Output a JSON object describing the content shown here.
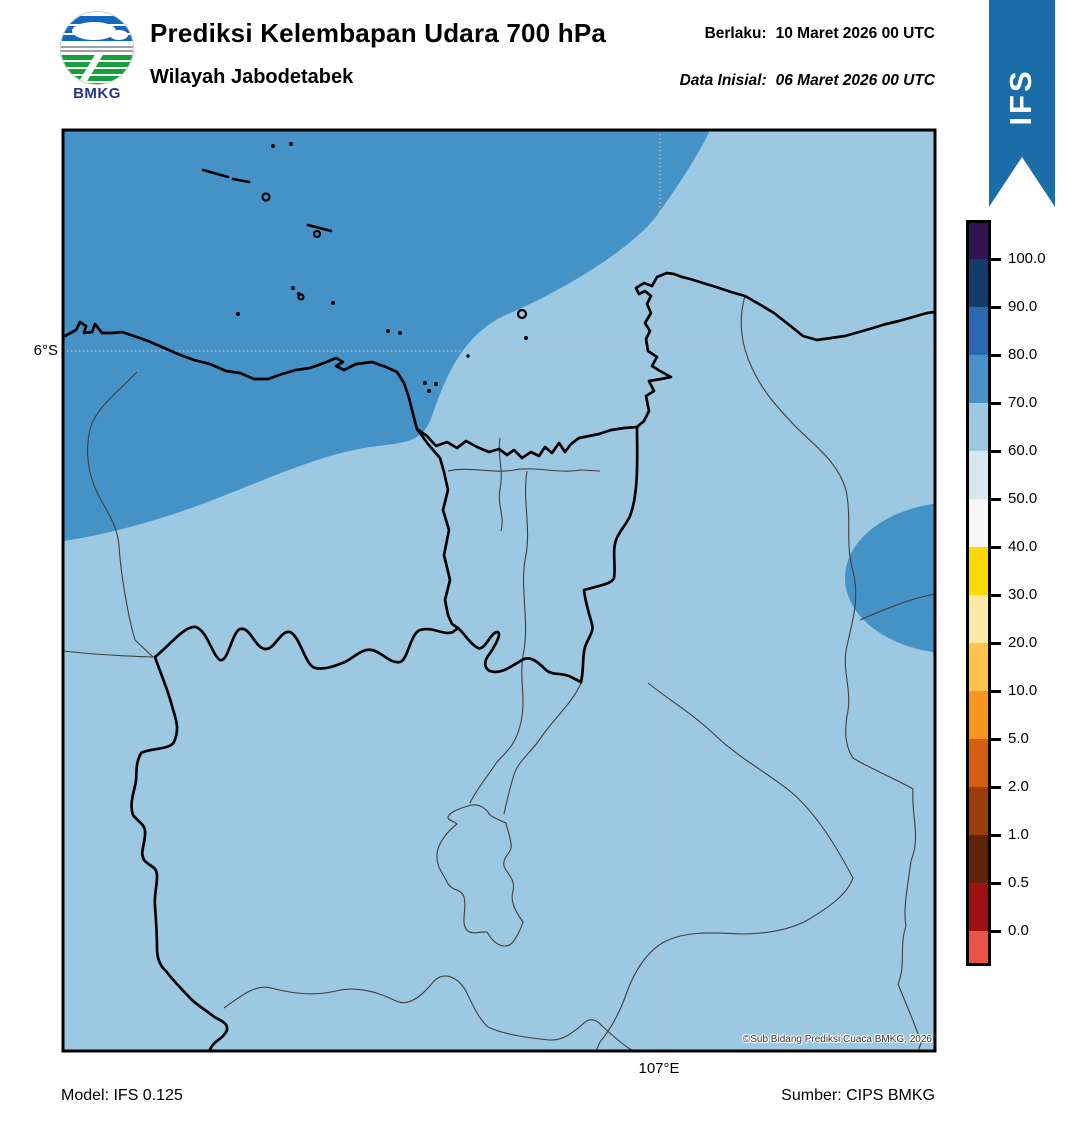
{
  "header": {
    "title": "Prediksi Kelembapan Udara 700 hPa",
    "subtitle": "Wilayah Jabodetabek",
    "valid_label": "Berlaku:",
    "valid_value": "10 Maret 2026 00 UTC",
    "initial_label": "Data Inisial:",
    "initial_value": "06 Maret 2026 00 UTC",
    "logo_text": "BMKG",
    "model_ribbon": "IFS"
  },
  "map": {
    "lat_tick": "6°S",
    "lon_tick": "107°E",
    "copyright": "©Sub Bidang Prediksi Cuaca BMKG, 2026",
    "shade_light_hex": "#9cc8e1",
    "shade_dark_hex": "#4492c6",
    "ribbon_hex": "#1b6da8",
    "gridline_hex": "#c2c2c2"
  },
  "footer": {
    "model": "Model: IFS 0.125",
    "source": "Sumber: CIPS BMKG"
  },
  "chart_data": {
    "type": "heatmap",
    "title": "Prediksi Kelembapan Udara 700 hPa",
    "region": "Wilayah Jabodetabek",
    "variable": "Relative humidity at 700 hPa (%)",
    "valid_time": "10 Maret 2026 00 UTC",
    "initial_time": "06 Maret 2026 00 UTC",
    "model": "IFS 0.125",
    "source": "CIPS BMKG",
    "gridlines": {
      "lat": "6°S",
      "lon": "107°E"
    },
    "colorbar": {
      "tick_labels": [
        "100.0",
        "90.0",
        "80.0",
        "70.0",
        "60.0",
        "50.0",
        "40.0",
        "30.0",
        "20.0",
        "10.0",
        "5.0",
        "2.0",
        "1.0",
        "0.5",
        "0.0"
      ],
      "band_colors_top_to_bottom": [
        "#321250",
        "#133c6d",
        "#2a6ab2",
        "#4793c7",
        "#9cc8e1",
        "#d8e6f0",
        "#f6f6f7",
        "#fdd802",
        "#fce9a4",
        "#fdc34d",
        "#f8961d",
        "#d45d0f",
        "#9e3d0c",
        "#5f2309",
        "#9e1215",
        "#ec5447"
      ]
    },
    "depicted_field": [
      {
        "area": "northwest sea, Kepulauan Seribu and west coast",
        "value_range": "70-80",
        "color": "#4492c6"
      },
      {
        "area": "most of mainland Jabodetabek and northeast sea",
        "value_range": "60-70",
        "color": "#9cc8e1"
      },
      {
        "area": "small lobe at eastern map edge (~6.3°S)",
        "value_range": "70-80",
        "color": "#4492c6"
      }
    ]
  }
}
